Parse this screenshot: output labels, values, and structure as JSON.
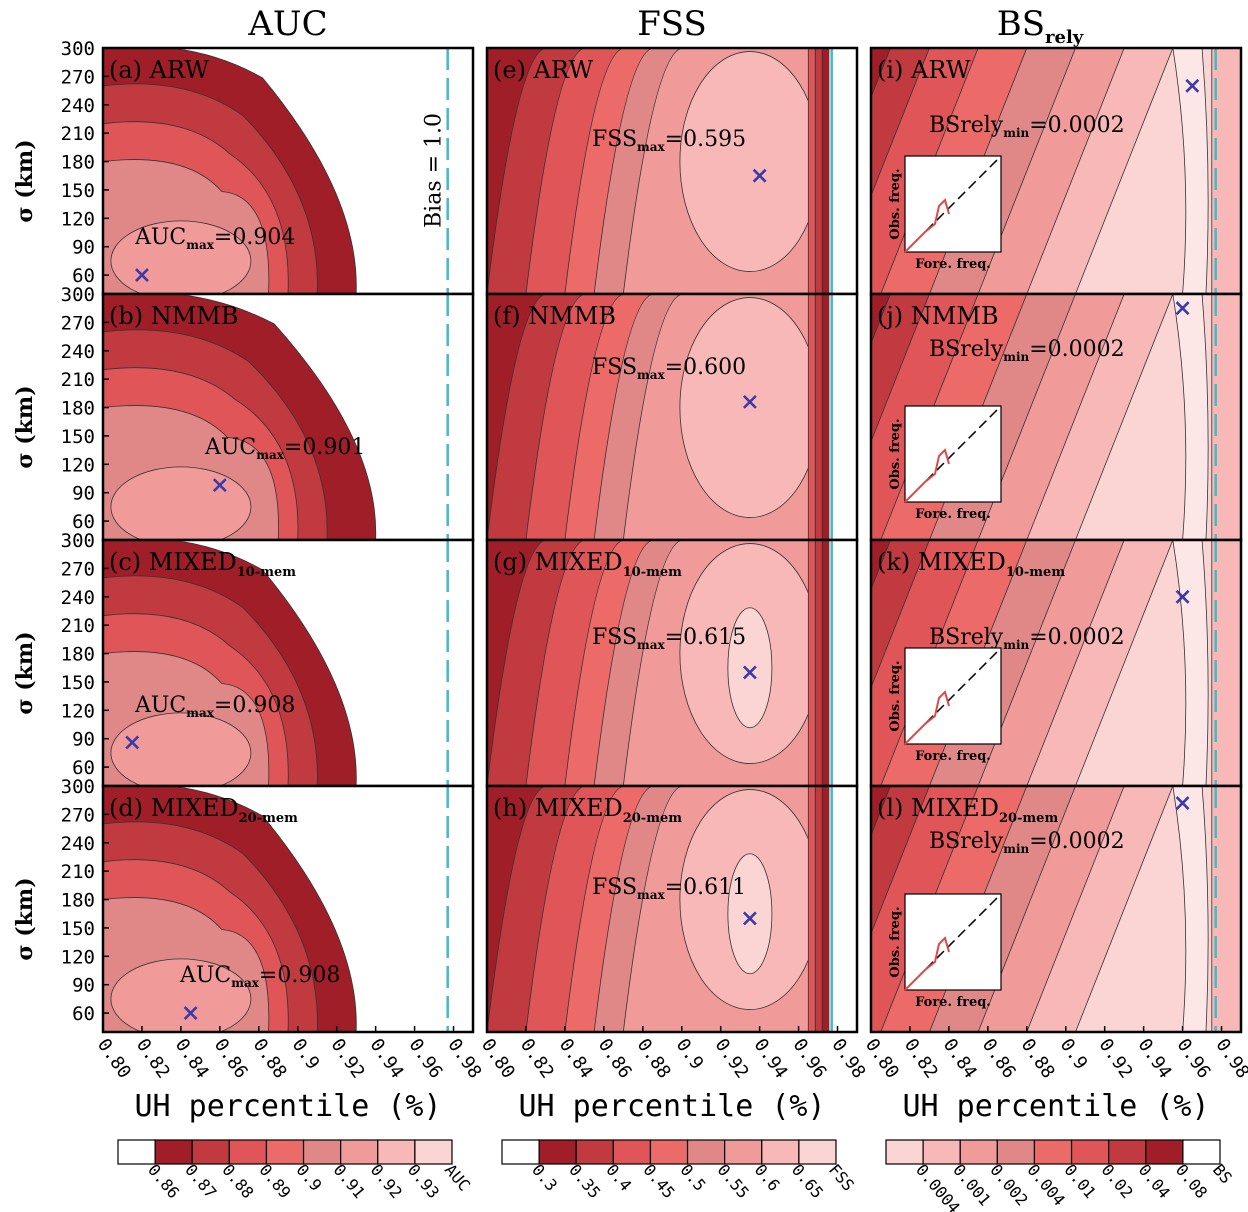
{
  "figure": {
    "columns": [
      {
        "id": "auc",
        "title": "AUC",
        "title_sub": ""
      },
      {
        "id": "fss",
        "title": "FSS",
        "title_sub": ""
      },
      {
        "id": "bs",
        "title": "BS",
        "title_sub": "rely"
      }
    ],
    "y_axis_label": "σ (km)",
    "x_axis_label": "UH percentile (%)",
    "y_ticks": [
      "60",
      "90",
      "120",
      "150",
      "180",
      "210",
      "240",
      "270",
      "300"
    ],
    "x_ticks": [
      "0.80",
      "0.82",
      "0.84",
      "0.86",
      "0.88",
      "0.9",
      "0.92",
      "0.94",
      "0.96",
      "0.98"
    ],
    "bias_label": "Bias = 1.0",
    "bias_color": "#3fbcc4",
    "marker_color": "#3a3aa8",
    "inset_labels": {
      "y": "Obs. freq.",
      "x": "Fore. freq."
    },
    "colorbars": [
      {
        "id": "auc",
        "labels": [
          "0.86",
          "0.87",
          "0.88",
          "0.89",
          "0.9",
          "0.91",
          "0.92",
          "0.93",
          "AUC"
        ],
        "colors": [
          "#ffffff",
          "#a01e28",
          "#c03a40",
          "#e05658",
          "#ec6a68",
          "#e08888",
          "#f09a9a",
          "#f8b8b8",
          "#fbd4d4"
        ]
      },
      {
        "id": "fss",
        "labels": [
          "0.3",
          "0.35",
          "0.4",
          "0.45",
          "0.5",
          "0.55",
          "0.6",
          "0.65",
          "FSS"
        ],
        "colors": [
          "#ffffff",
          "#a01e28",
          "#c03a40",
          "#e05658",
          "#ec6a68",
          "#e08888",
          "#f09a9a",
          "#f8b8b8",
          "#fbd4d4"
        ]
      },
      {
        "id": "bs",
        "labels": [
          "0.0004",
          "0.001",
          "0.002",
          "0.004",
          "0.01",
          "0.02",
          "0.04",
          "0.08",
          "BS"
        ],
        "colors": [
          "#fbd4d4",
          "#f8b8b8",
          "#f09a9a",
          "#e08888",
          "#ec6a68",
          "#e05658",
          "#c03a40",
          "#a01e28",
          "#ffffff"
        ]
      }
    ]
  },
  "panels": [
    {
      "id": "a",
      "label": "(a)",
      "model": "ARW",
      "model_sub": "",
      "col": 0,
      "row": 0,
      "annot": {
        "name": "AUC",
        "sub": "max",
        "value": "=0.904"
      },
      "marker": [
        0.82,
        60
      ],
      "show_bias_label": true
    },
    {
      "id": "b",
      "label": "(b)",
      "model": "NMMB",
      "model_sub": "",
      "col": 0,
      "row": 1,
      "annot": {
        "name": "AUC",
        "sub": "max",
        "value": "=0.901"
      },
      "marker": [
        0.86,
        98
      ]
    },
    {
      "id": "c",
      "label": "(c)",
      "model": "MIXED",
      "model_sub": "10-mem",
      "col": 0,
      "row": 2,
      "annot": {
        "name": "AUC",
        "sub": "max",
        "value": "=0.908"
      },
      "marker": [
        0.815,
        86
      ]
    },
    {
      "id": "d",
      "label": "(d)",
      "model": "MIXED",
      "model_sub": "20-mem",
      "col": 0,
      "row": 3,
      "annot": {
        "name": "AUC",
        "sub": "max",
        "value": "=0.908"
      },
      "marker": [
        0.845,
        60
      ]
    },
    {
      "id": "e",
      "label": "(e)",
      "model": "ARW",
      "model_sub": "",
      "col": 1,
      "row": 0,
      "annot": {
        "name": "FSS",
        "sub": "max",
        "value": "=0.595"
      },
      "marker": [
        0.94,
        165
      ]
    },
    {
      "id": "f",
      "label": "(f)",
      "model": "NMMB",
      "model_sub": "",
      "col": 1,
      "row": 1,
      "annot": {
        "name": "FSS",
        "sub": "max",
        "value": "=0.600"
      },
      "marker": [
        0.935,
        186
      ]
    },
    {
      "id": "g",
      "label": "(g)",
      "model": "MIXED",
      "model_sub": "10-mem",
      "col": 1,
      "row": 2,
      "annot": {
        "name": "FSS",
        "sub": "max",
        "value": "=0.615"
      },
      "marker": [
        0.935,
        160
      ]
    },
    {
      "id": "h",
      "label": "(h)",
      "model": "MIXED",
      "model_sub": "20-mem",
      "col": 1,
      "row": 3,
      "annot": {
        "name": "FSS",
        "sub": "max",
        "value": "=0.611"
      },
      "marker": [
        0.935,
        160
      ]
    },
    {
      "id": "i",
      "label": "(i)",
      "model": "ARW",
      "model_sub": "",
      "col": 2,
      "row": 0,
      "annot": {
        "name": "BSrely",
        "sub": "min",
        "value": "=0.0002"
      },
      "marker": [
        0.965,
        260
      ]
    },
    {
      "id": "j",
      "label": "(j)",
      "model": "NMMB",
      "model_sub": "",
      "col": 2,
      "row": 1,
      "annot": {
        "name": "BSrely",
        "sub": "min",
        "value": "=0.0002"
      },
      "marker": [
        0.96,
        285
      ]
    },
    {
      "id": "k",
      "label": "(k)",
      "model": "MIXED",
      "model_sub": "10-mem",
      "col": 2,
      "row": 2,
      "annot": {
        "name": "BSrely",
        "sub": "min",
        "value": "=0.0002"
      },
      "marker": [
        0.96,
        240
      ]
    },
    {
      "id": "l",
      "label": "(l)",
      "model": "MIXED",
      "model_sub": "20-mem",
      "col": 2,
      "row": 3,
      "annot": {
        "name": "BSrely",
        "sub": "min",
        "value": "=0.0002"
      },
      "marker": [
        0.96,
        282
      ]
    }
  ],
  "chart_data": {
    "type": "heatmap",
    "x_range": [
      0.8,
      0.99
    ],
    "y_range": [
      40,
      300
    ],
    "bias_line_x": {
      "auc": 0.977,
      "fss": 0.977,
      "bs": 0.977
    },
    "optima": [
      {
        "panel": "a",
        "metric": "AUC_max",
        "value": 0.904,
        "x": 0.82,
        "y": 60
      },
      {
        "panel": "b",
        "metric": "AUC_max",
        "value": 0.901,
        "x": 0.86,
        "y": 98
      },
      {
        "panel": "c",
        "metric": "AUC_max",
        "value": 0.908,
        "x": 0.815,
        "y": 86
      },
      {
        "panel": "d",
        "metric": "AUC_max",
        "value": 0.908,
        "x": 0.845,
        "y": 60
      },
      {
        "panel": "e",
        "metric": "FSS_max",
        "value": 0.595,
        "x": 0.94,
        "y": 165
      },
      {
        "panel": "f",
        "metric": "FSS_max",
        "value": 0.6,
        "x": 0.935,
        "y": 186
      },
      {
        "panel": "g",
        "metric": "FSS_max",
        "value": 0.615,
        "x": 0.935,
        "y": 160
      },
      {
        "panel": "h",
        "metric": "FSS_max",
        "value": 0.611,
        "x": 0.935,
        "y": 160
      },
      {
        "panel": "i",
        "metric": "BSrely_min",
        "value": 0.0002,
        "x": 0.965,
        "y": 260
      },
      {
        "panel": "j",
        "metric": "BSrely_min",
        "value": 0.0002,
        "x": 0.96,
        "y": 285
      },
      {
        "panel": "k",
        "metric": "BSrely_min",
        "value": 0.0002,
        "x": 0.96,
        "y": 240
      },
      {
        "panel": "l",
        "metric": "BSrely_min",
        "value": 0.0002,
        "x": 0.96,
        "y": 282
      }
    ]
  }
}
